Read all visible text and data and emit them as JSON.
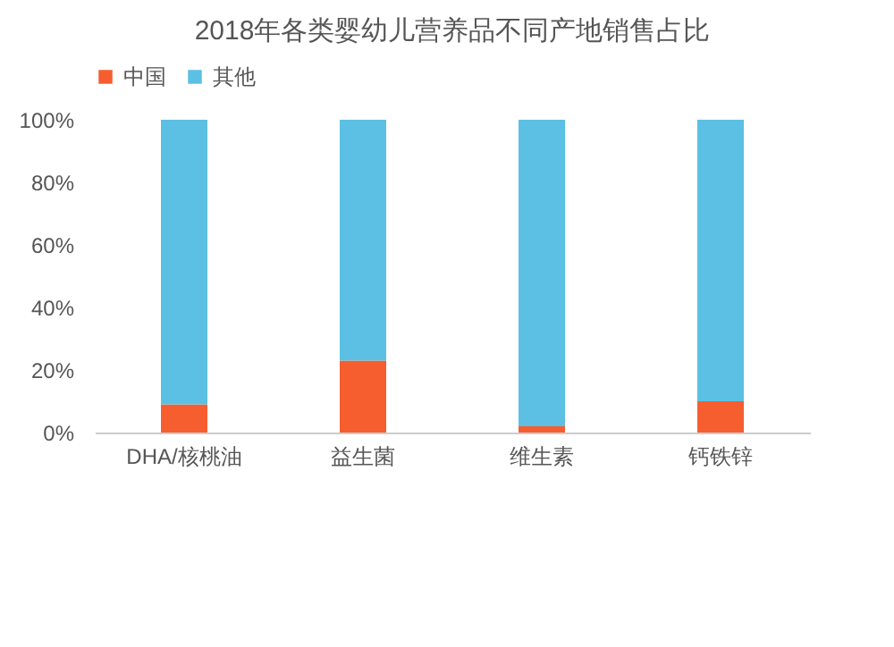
{
  "chart_data": {
    "type": "bar",
    "title": "2018年各类婴幼儿营养品不同产地销售占比",
    "stacked": true,
    "legend": "top",
    "grid": false,
    "categories": [
      "DHA/核桃油",
      "益生菌",
      "维生素",
      "钙铁锌"
    ],
    "series": [
      {
        "name": "中国",
        "color": "#f65e2f",
        "values": [
          9,
          23,
          2,
          10
        ]
      },
      {
        "name": "其他",
        "color": "#5bc0e3",
        "values": [
          91,
          77,
          98,
          90
        ]
      }
    ],
    "ylim": [
      0,
      100
    ],
    "yticks": [
      {
        "value": 0,
        "label": "0%"
      },
      {
        "value": 20,
        "label": "20%"
      },
      {
        "value": 40,
        "label": "40%"
      },
      {
        "value": 60,
        "label": "60%"
      },
      {
        "value": 80,
        "label": "80%"
      },
      {
        "value": 100,
        "label": "100%"
      }
    ]
  }
}
